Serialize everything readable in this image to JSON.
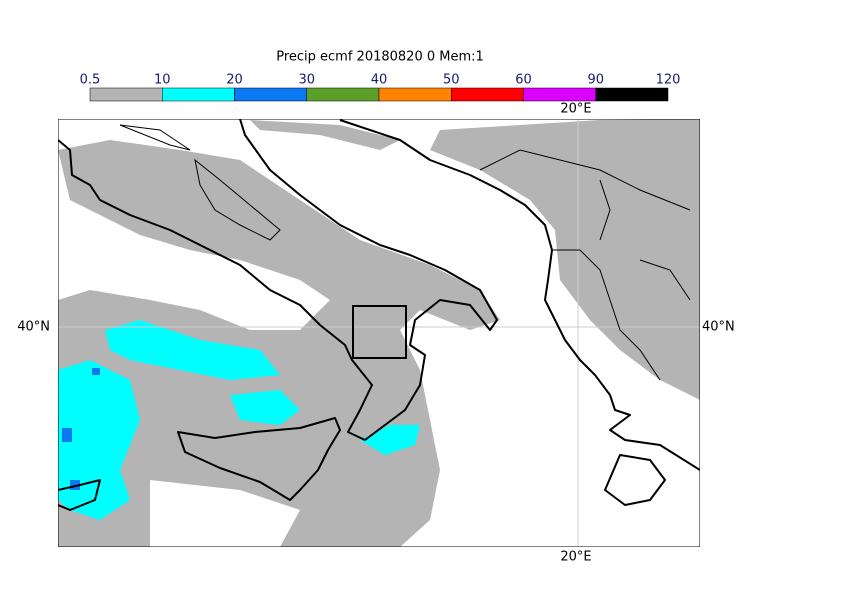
{
  "title": "Precip ecmf 20180820 0 Mem:1",
  "colorbar": {
    "bounds": [
      0.5,
      10,
      20,
      30,
      40,
      50,
      60,
      90,
      120
    ],
    "colors": [
      "#b4b4b4",
      "#00ffff",
      "#0a78f0",
      "#5aa028",
      "#ff8200",
      "#ff0000",
      "#dc00ff",
      "#000000"
    ]
  },
  "map": {
    "lon_label": "20°E",
    "lat_label": "40°N"
  }
}
